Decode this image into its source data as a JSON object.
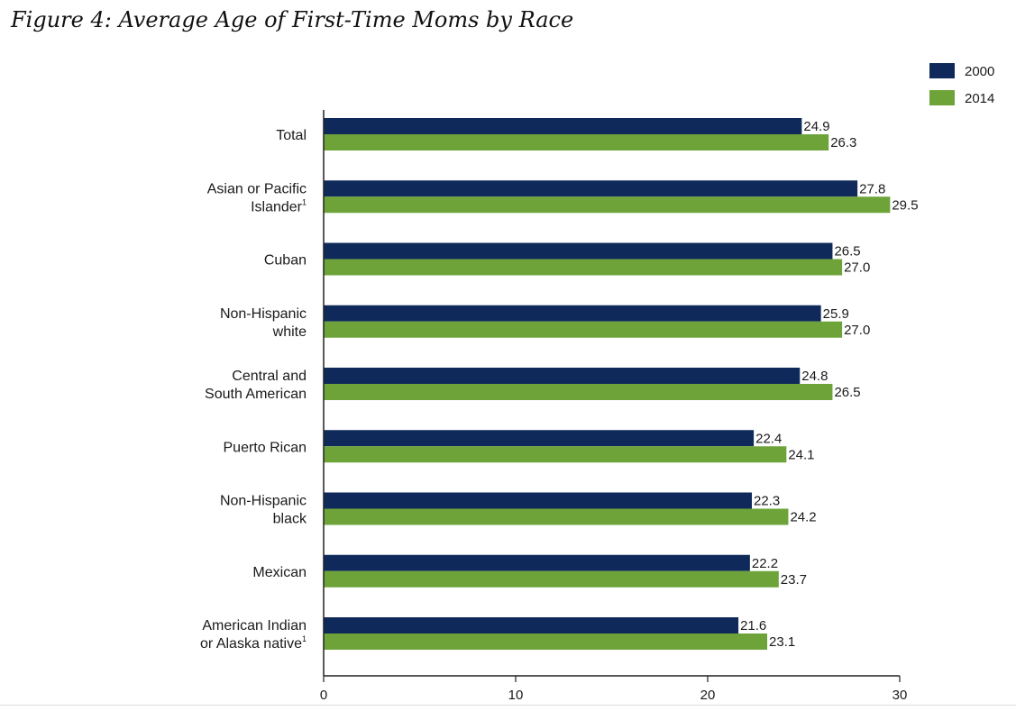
{
  "colors": {
    "series_2000": "#0f2a5a",
    "series_2014": "#6ea33a",
    "axis": "#222222"
  },
  "chart_data": {
    "type": "bar",
    "orientation": "horizontal",
    "title": "Figure 4: Average Age of First-Time Moms by Race",
    "categories": [
      {
        "lines": [
          "Total"
        ],
        "footnote": ""
      },
      {
        "lines": [
          "Asian or Pacific",
          "Islander"
        ],
        "footnote": "1"
      },
      {
        "lines": [
          "Cuban"
        ],
        "footnote": ""
      },
      {
        "lines": [
          "Non-Hispanic",
          "white"
        ],
        "footnote": ""
      },
      {
        "lines": [
          "Central and",
          "South American"
        ],
        "footnote": ""
      },
      {
        "lines": [
          "Puerto Rican"
        ],
        "footnote": ""
      },
      {
        "lines": [
          "Non-Hispanic",
          "black"
        ],
        "footnote": ""
      },
      {
        "lines": [
          "Mexican"
        ],
        "footnote": ""
      },
      {
        "lines": [
          "American Indian",
          "or Alaska native"
        ],
        "footnote": "1"
      }
    ],
    "series": [
      {
        "name": "2000",
        "values": [
          24.9,
          27.8,
          26.5,
          25.9,
          24.8,
          22.4,
          22.3,
          22.2,
          21.6
        ]
      },
      {
        "name": "2014",
        "values": [
          26.3,
          29.5,
          27.0,
          27.0,
          26.5,
          24.1,
          24.2,
          23.7,
          23.1
        ]
      }
    ],
    "xlim": [
      0,
      30
    ],
    "xticks": [
      0,
      10,
      20,
      30
    ],
    "grid": false,
    "legend_position": "top-right"
  }
}
